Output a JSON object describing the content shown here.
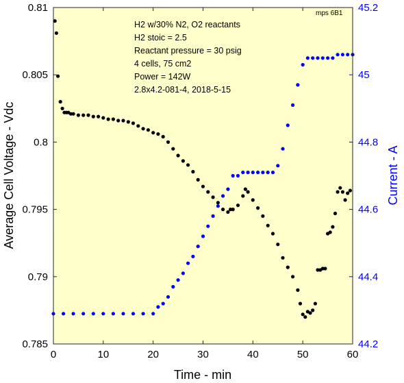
{
  "chart_data": {
    "type": "scatter",
    "xlabel": "Time - min",
    "ylabel_left": "Average Cell Voltage - Vdc",
    "ylabel_right": "Current - A",
    "xlim": [
      0,
      60
    ],
    "ylim_left": [
      0.785,
      0.81
    ],
    "ylim_right": [
      44.2,
      45.2
    ],
    "x_ticks": [
      "0",
      "10",
      "20",
      "30",
      "40",
      "50",
      "60"
    ],
    "y_left_ticks": [
      "0.785",
      "0.79",
      "0.795",
      "0.8",
      "0.805",
      "0.81"
    ],
    "y_right_ticks": [
      "44.2",
      "44.4",
      "44.6",
      "44.8",
      "45",
      "45.2"
    ],
    "grid": false,
    "background": "#ffffcc",
    "annotation_lines": [
      "H2 w/30% N2, O2 reactants",
      "H2 stoic = 2.5",
      "Reactant pressure = 30 psig",
      "4 cells, 75 cm2",
      "Power = 142W",
      "2.8x4.2-081-4,  2018-5-15"
    ],
    "corner_label": "mps 6B1",
    "series": [
      {
        "axis": "left",
        "color": "#000000",
        "x": [
          0.3,
          0.6,
          0.9,
          1.4,
          1.8,
          2.2,
          2.6,
          3.0,
          3.5,
          4,
          5,
          6,
          7,
          8,
          9,
          10,
          11,
          12,
          13,
          14,
          15,
          16,
          17,
          18,
          19,
          20,
          21,
          22,
          23,
          24,
          25,
          26,
          27,
          28,
          29,
          30,
          31,
          32,
          33,
          34,
          35,
          35.5,
          36,
          37,
          38,
          38.5,
          39,
          40,
          41,
          42,
          43,
          44,
          45,
          46,
          47,
          48,
          49,
          49.5,
          50,
          50.5,
          51,
          51.5,
          52,
          52.5,
          53,
          53.5,
          54,
          54.5,
          55,
          55.5,
          56,
          56.5,
          57,
          57.5,
          58,
          58.5,
          59,
          59.5
        ],
        "y": [
          0.809,
          0.8081,
          0.8049,
          0.803,
          0.8025,
          0.8022,
          0.8022,
          0.8022,
          0.8021,
          0.8021,
          0.802,
          0.802,
          0.802,
          0.8019,
          0.8019,
          0.8018,
          0.8017,
          0.8017,
          0.8016,
          0.8016,
          0.8015,
          0.8014,
          0.8012,
          0.801,
          0.8009,
          0.8007,
          0.8006,
          0.8004,
          0.8,
          0.7995,
          0.799,
          0.7986,
          0.7983,
          0.7978,
          0.7972,
          0.7967,
          0.7963,
          0.7959,
          0.7955,
          0.795,
          0.7948,
          0.795,
          0.795,
          0.7953,
          0.796,
          0.7965,
          0.7963,
          0.7957,
          0.7951,
          0.7945,
          0.7938,
          0.7932,
          0.7924,
          0.7914,
          0.7907,
          0.79,
          0.789,
          0.788,
          0.7872,
          0.787,
          0.7874,
          0.7873,
          0.7875,
          0.788,
          0.7905,
          0.7905,
          0.7906,
          0.7906,
          0.7932,
          0.7933,
          0.7937,
          0.7947,
          0.7963,
          0.7966,
          0.7963,
          0.7957,
          0.7962,
          0.7964
        ]
      },
      {
        "axis": "right",
        "color": "#0000ff",
        "x": [
          0,
          2,
          4,
          6,
          8,
          10,
          12,
          14,
          16,
          18,
          20,
          21,
          22,
          23,
          24,
          25,
          26,
          27,
          28,
          29,
          30,
          31,
          32,
          33,
          34,
          35,
          36,
          37,
          38,
          39,
          40,
          41,
          42,
          43,
          44,
          45,
          46,
          47,
          48,
          49,
          50,
          51,
          52,
          53,
          54,
          55,
          56,
          57,
          58,
          59,
          60
        ],
        "y": [
          44.29,
          44.29,
          44.29,
          44.29,
          44.29,
          44.29,
          44.29,
          44.29,
          44.29,
          44.29,
          44.29,
          44.31,
          44.32,
          44.34,
          44.37,
          44.39,
          44.41,
          44.44,
          44.46,
          44.49,
          44.52,
          44.55,
          44.58,
          44.61,
          44.64,
          44.66,
          44.7,
          44.7,
          44.71,
          44.71,
          44.71,
          44.71,
          44.71,
          44.71,
          44.71,
          44.73,
          44.78,
          44.85,
          44.91,
          44.97,
          45.03,
          45.05,
          45.05,
          45.05,
          45.05,
          45.05,
          45.05,
          45.06,
          45.06,
          45.06,
          45.06
        ]
      }
    ]
  }
}
